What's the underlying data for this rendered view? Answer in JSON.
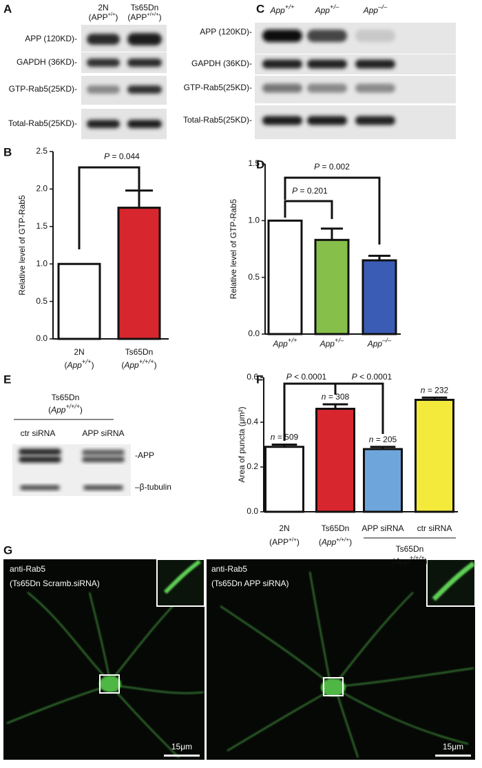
{
  "panel_labels": [
    "A",
    "B",
    "C",
    "D",
    "E",
    "F",
    "G"
  ],
  "blot_a": {
    "lanes": [
      {
        "name": "2N",
        "genotype": [
          "(APP",
          "+/+",
          ")"
        ]
      },
      {
        "name": "Ts65Dn",
        "genotype": [
          "(APP",
          "+/+/+",
          ")"
        ]
      }
    ],
    "rows": [
      "APP (120KD)-",
      "GAPDH (36KD)-",
      "GTP-Rab5(25KD)-",
      "Total-Rab5(25KD)-"
    ]
  },
  "blot_c": {
    "lanes": [
      [
        "App",
        "+/+"
      ],
      [
        "App",
        "+/–"
      ],
      [
        "App",
        "–/–"
      ]
    ],
    "rows": [
      "APP (120KD)-",
      "GAPDH (36KD)-",
      "GTP-Rab5(25KD)-",
      "Total-Rab5(25KD)-"
    ]
  },
  "blot_e": {
    "group": "Ts65Dn",
    "genotype": [
      "(",
      "App",
      "+/+/+",
      ")"
    ],
    "lanes": [
      "ctr siRNA",
      "APP siRNA"
    ],
    "bands": [
      "-APP",
      "–β-tubulin"
    ]
  },
  "chart_data": [
    {
      "type": "bar",
      "ylabel": "Relative level of GTP-Rab5",
      "categories": [
        "2N",
        "Ts65Dn"
      ],
      "genotypes": [
        [
          "(",
          "App",
          "+/+",
          ")"
        ],
        [
          "(",
          "App",
          "+/+/+",
          ")"
        ]
      ],
      "values": [
        1.0,
        1.75
      ],
      "errors": [
        null,
        0.23
      ],
      "colors": [
        "#ffffff",
        "#d7262e"
      ],
      "ylim": [
        0,
        2.5
      ],
      "yticks": [
        {
          "value": 0,
          "label": "0.0"
        },
        0.5,
        {
          "value": 1,
          "label": "1.0"
        },
        1.5,
        {
          "value": 2,
          "label": "2.0"
        },
        2.5
      ],
      "annotations": [
        [
          "P",
          " = 0.044"
        ]
      ]
    },
    {
      "type": "bar",
      "ylabel": "Relative level of GTP-Rab5",
      "categories": [
        [
          "App",
          "+/+"
        ],
        [
          "App",
          "+/–"
        ],
        [
          "App",
          "–/–"
        ]
      ],
      "values": [
        1.0,
        0.83,
        0.65
      ],
      "errors": [
        null,
        0.1,
        0.04
      ],
      "colors": [
        "#ffffff",
        "#86c04a",
        "#3a5cb4"
      ],
      "ylim": [
        0,
        1.5
      ],
      "yticks": [
        {
          "value": 0,
          "label": "0.0"
        },
        0.5,
        {
          "value": 1,
          "label": "1.0"
        },
        1.5
      ],
      "annotations": [
        [
          "P",
          " = 0.201"
        ],
        [
          "P",
          " = 0.002"
        ]
      ]
    },
    {
      "type": "bar",
      "ylabel": "Area of puncta (μm²)",
      "categories": [
        "2N",
        "Ts65Dn",
        "APP siRNA",
        "ctr siRNA"
      ],
      "genotypes": [
        [
          "(APP",
          "+/+",
          ")"
        ],
        [
          "(",
          "App",
          "+/+/+",
          ")"
        ],
        null,
        null
      ],
      "group": "Ts65Dn",
      "group_genotype": [
        "(",
        "App",
        "+/+/+",
        ")"
      ],
      "values": [
        0.29,
        0.46,
        0.28,
        0.5
      ],
      "errors": [
        0.01,
        0.02,
        0.01,
        0.01
      ],
      "colors": [
        "#ffffff",
        "#d7262e",
        "#6ea6dc",
        "#f4ea3c"
      ],
      "ylim": [
        0,
        0.6
      ],
      "yticks": [
        {
          "value": 0,
          "label": "0.0"
        },
        0.2,
        0.4,
        0.6
      ],
      "n_labels": [
        [
          "n",
          " = 509"
        ],
        [
          "n",
          " = 308"
        ],
        [
          "n",
          " = 205"
        ],
        [
          "n",
          " = 232"
        ]
      ],
      "annotations": [
        [
          "P",
          " < 0.0001"
        ],
        [
          "P",
          " < 0.0001"
        ]
      ]
    }
  ],
  "images": [
    {
      "label": "anti-Rab5",
      "condition": "(Ts65Dn Scramb.siRNA)",
      "scale": "15μm"
    },
    {
      "label": "anti-Rab5",
      "condition": "(Ts65Dn APP siRNA)",
      "scale": "15μm"
    }
  ]
}
